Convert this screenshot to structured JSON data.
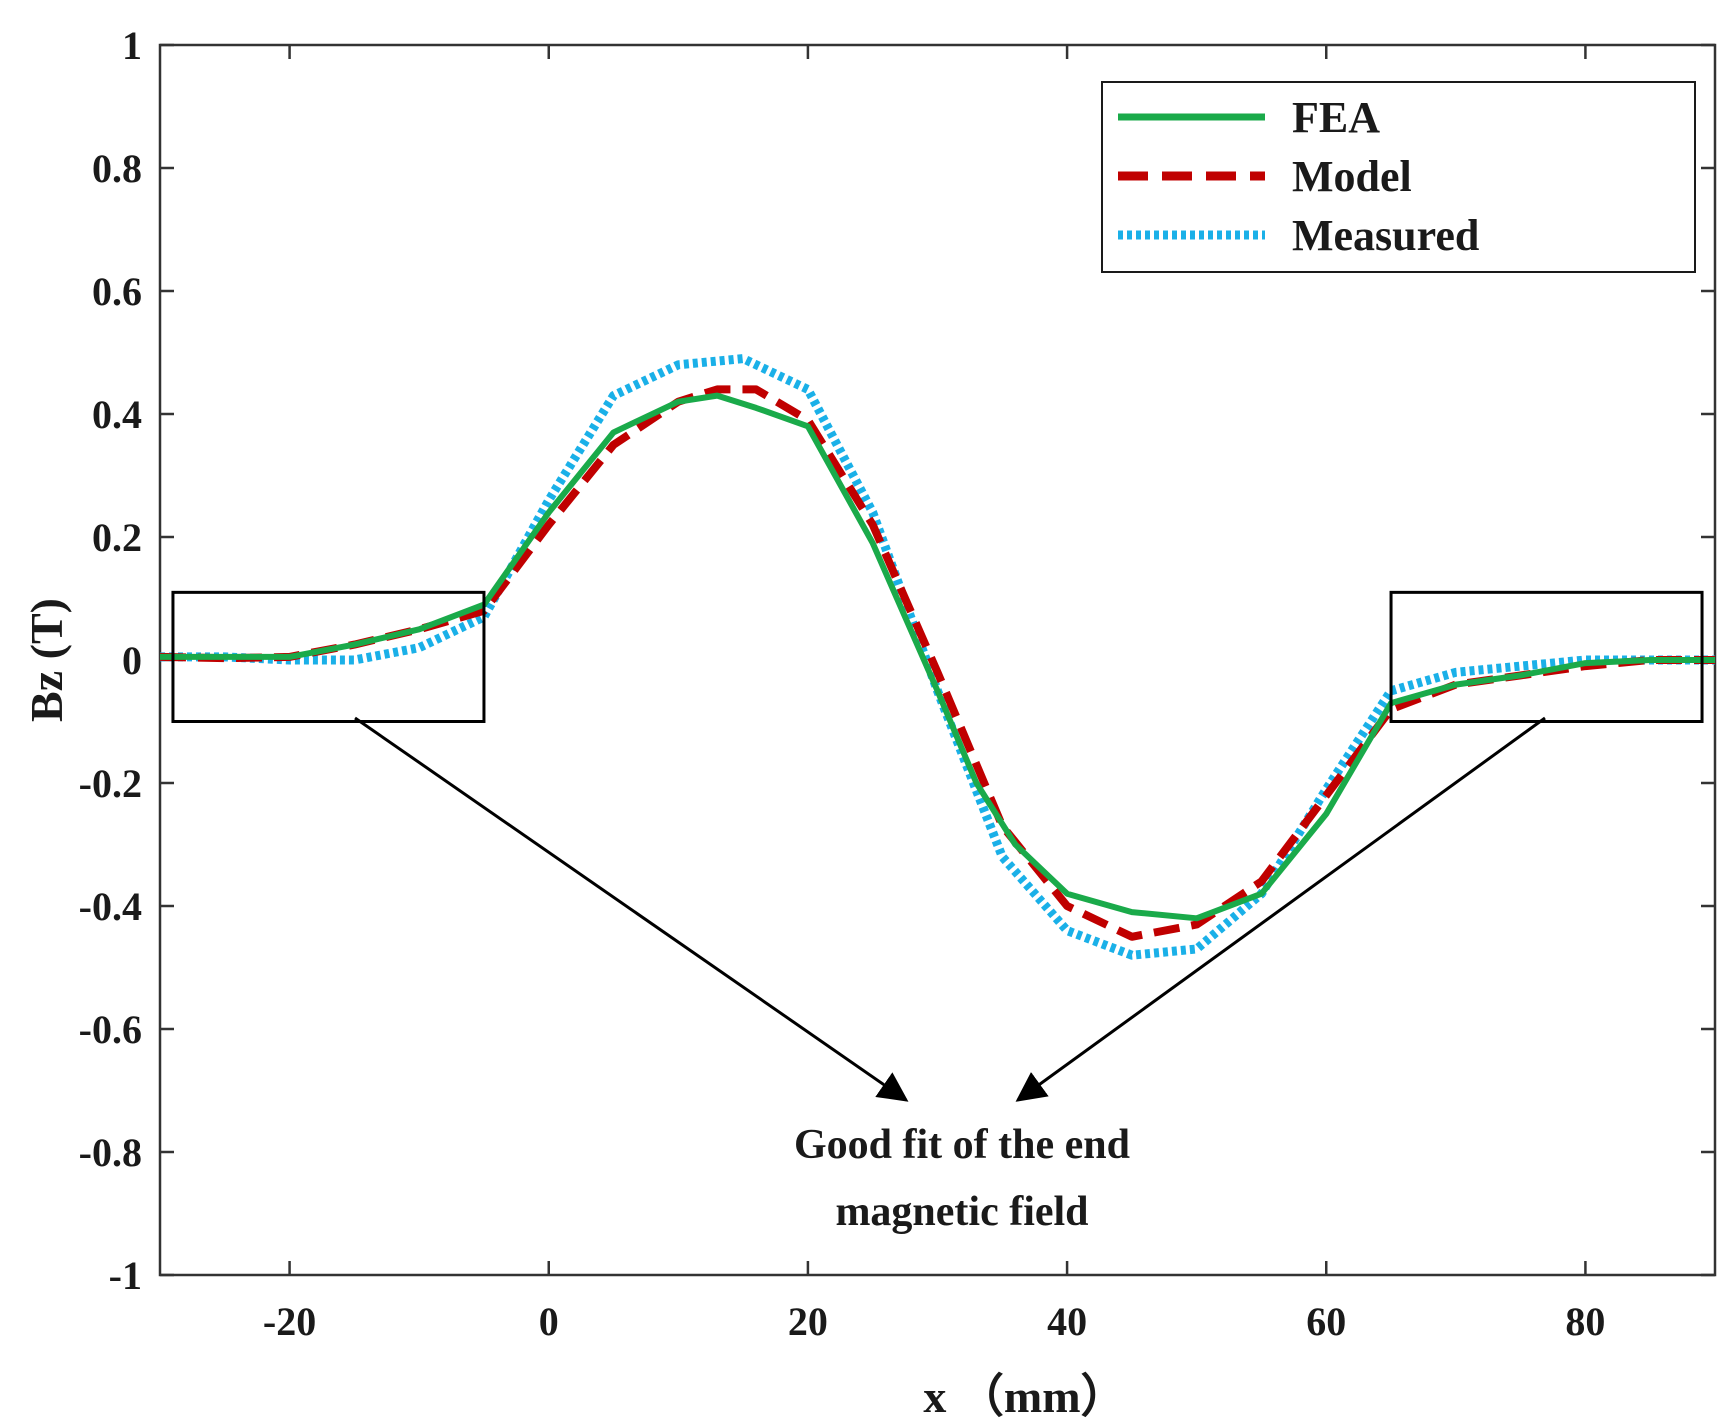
{
  "chart_data": {
    "type": "line",
    "title": "",
    "xlabel": "x （mm）",
    "ylabel": "Bz (T)",
    "xlim": [
      -30,
      90
    ],
    "ylim": [
      -1,
      1
    ],
    "xticks": [
      -20,
      0,
      20,
      40,
      60,
      80
    ],
    "yticks": [
      1,
      0.8,
      0.6,
      0.4,
      0.2,
      0,
      -0.2,
      -0.4,
      -0.6,
      -0.8,
      -1
    ],
    "xtick_labels": [
      "-20",
      "0",
      "20",
      "40",
      "60",
      "80"
    ],
    "ytick_labels": [
      "1",
      "0.8",
      "0.6",
      "0.4",
      "0.2",
      "0",
      "-0.2",
      "-0.4",
      "-0.6",
      "-0.8",
      "-1"
    ],
    "legend_position": "top-right",
    "series": [
      {
        "name": "FEA",
        "color": "#1aaa4a",
        "style": "solid",
        "x": [
          -30,
          -25,
          -20,
          -15,
          -10,
          -5,
          0,
          5,
          10,
          13,
          16,
          20,
          25,
          30,
          33,
          36,
          40,
          45,
          50,
          55,
          60,
          65,
          70,
          75,
          80,
          85,
          90
        ],
        "y": [
          0.005,
          0.005,
          0.005,
          0.025,
          0.05,
          0.09,
          0.24,
          0.37,
          0.42,
          0.43,
          0.41,
          0.38,
          0.19,
          -0.05,
          -0.2,
          -0.3,
          -0.38,
          -0.41,
          -0.42,
          -0.38,
          -0.25,
          -0.07,
          -0.04,
          -0.025,
          -0.005,
          0,
          0
        ]
      },
      {
        "name": "Model",
        "color": "#c00000",
        "style": "dashed",
        "x": [
          -30,
          -25,
          -20,
          -15,
          -10,
          -5,
          0,
          5,
          10,
          13,
          16,
          20,
          25,
          30,
          35,
          40,
          45,
          50,
          55,
          60,
          65,
          70,
          75,
          80,
          85,
          90
        ],
        "y": [
          0.005,
          0.003,
          0.005,
          0.025,
          0.05,
          0.08,
          0.22,
          0.35,
          0.42,
          0.44,
          0.44,
          0.39,
          0.22,
          -0.02,
          -0.27,
          -0.4,
          -0.45,
          -0.43,
          -0.36,
          -0.22,
          -0.08,
          -0.04,
          -0.025,
          -0.01,
          0,
          0
        ]
      },
      {
        "name": "Measured",
        "color": "#1ab0e8",
        "style": "dotted",
        "x": [
          -30,
          -25,
          -20,
          -15,
          -10,
          -5,
          0,
          5,
          10,
          15,
          20,
          25,
          30,
          35,
          40,
          45,
          50,
          55,
          60,
          65,
          70,
          75,
          80,
          85,
          90
        ],
        "y": [
          0.005,
          0.005,
          0,
          0,
          0.02,
          0.07,
          0.26,
          0.43,
          0.48,
          0.49,
          0.44,
          0.24,
          -0.05,
          -0.32,
          -0.44,
          -0.48,
          -0.47,
          -0.38,
          -0.21,
          -0.05,
          -0.02,
          -0.01,
          0,
          0,
          0
        ]
      }
    ],
    "highlight_boxes": [
      {
        "x_range": [
          -29,
          -5
        ],
        "y_range": [
          -0.1,
          0.11
        ]
      },
      {
        "x_range": [
          65,
          89
        ],
        "y_range": [
          -0.1,
          0.11
        ]
      }
    ],
    "annotation": {
      "lines": [
        "Good fit of the end",
        "magnetic field"
      ]
    }
  }
}
